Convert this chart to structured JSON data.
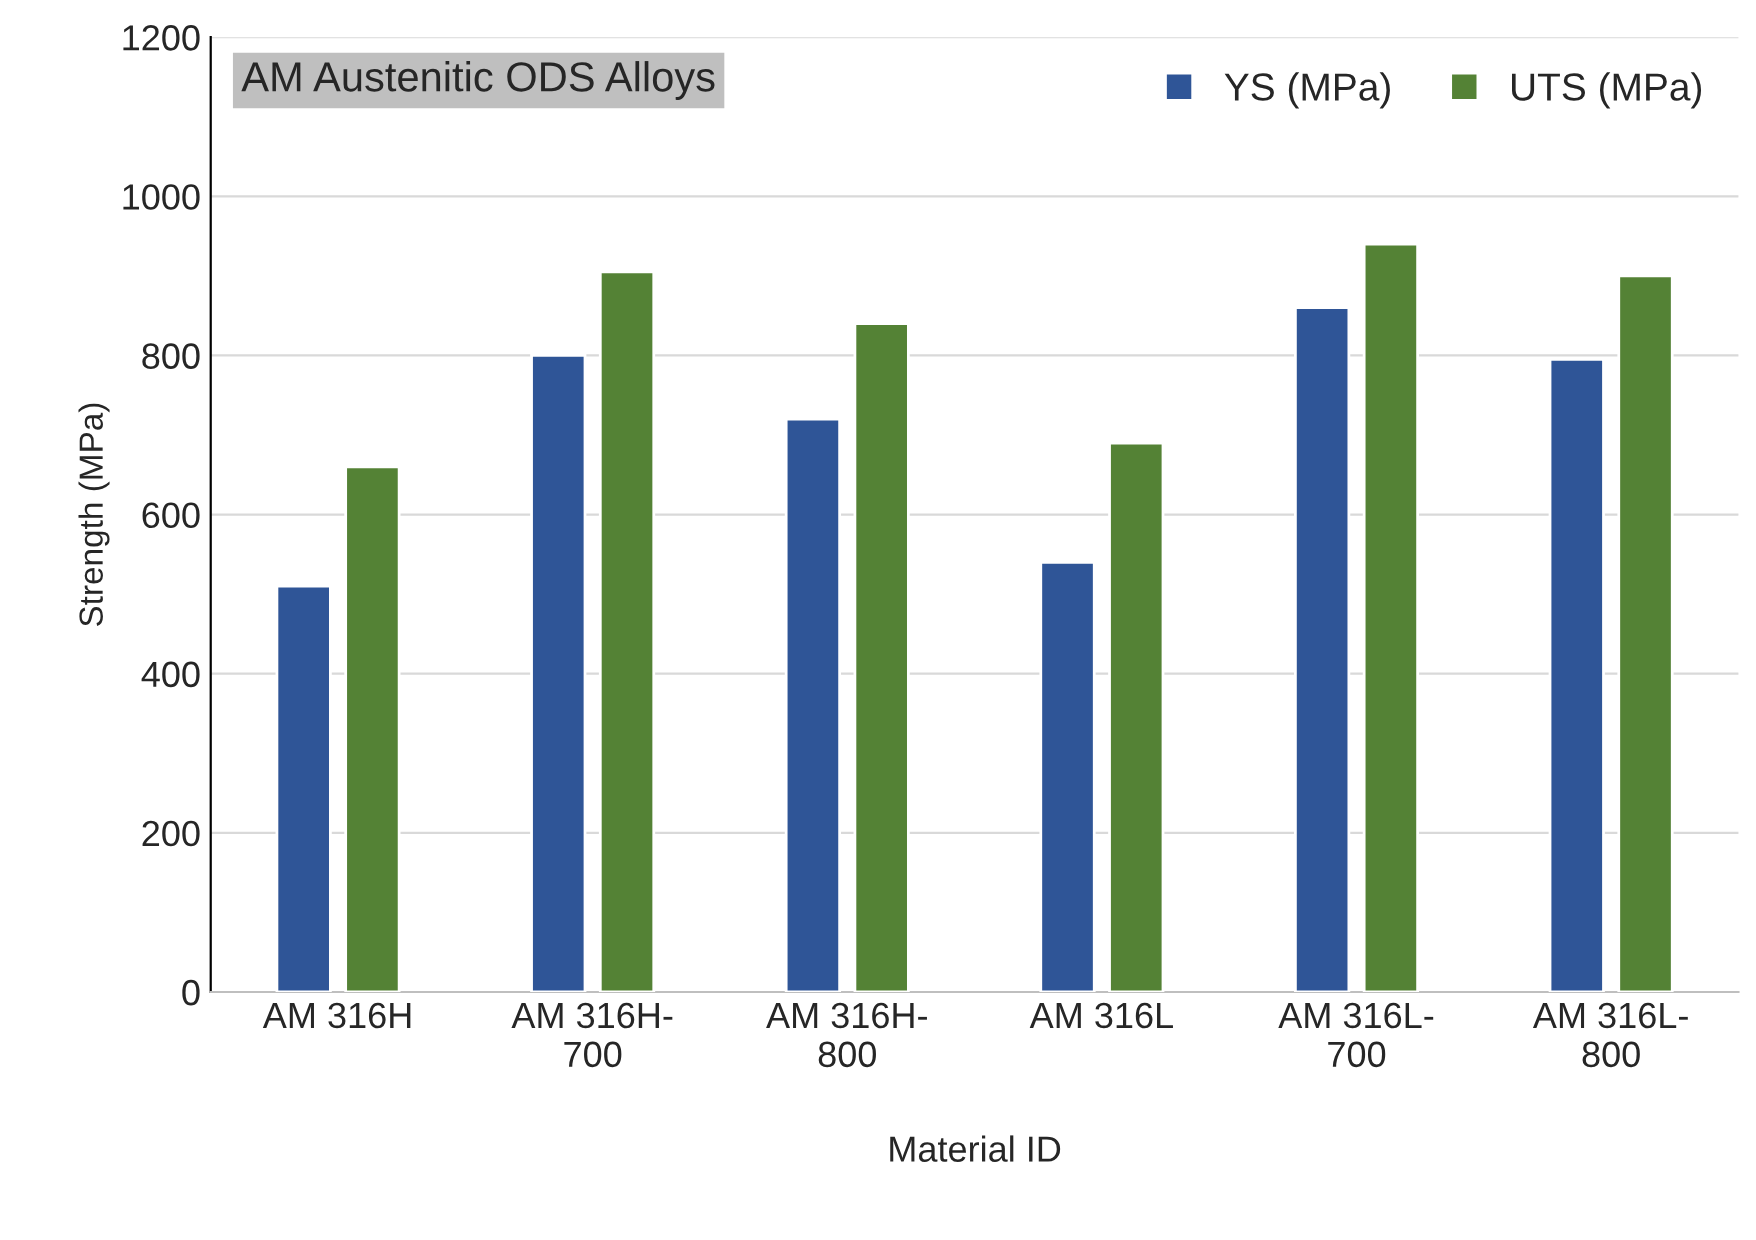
{
  "chart_data": {
    "type": "bar",
    "title": "AM Austenitic ODS Alloys",
    "xlabel": "Material ID",
    "ylabel": "Strength (MPa)",
    "categories": [
      "AM 316H",
      "AM 316H-\n700",
      "AM 316H-\n800",
      "AM 316L",
      "AM 316L-\n700",
      "AM 316L-\n800"
    ],
    "series": [
      {
        "name": "YS (MPa)",
        "color": "#2f5597",
        "values": [
          510,
          800,
          720,
          540,
          860,
          795
        ]
      },
      {
        "name": "UTS (MPa)",
        "color": "#548235",
        "values": [
          660,
          905,
          840,
          690,
          940,
          900
        ]
      }
    ],
    "ylim": [
      0,
      1200
    ],
    "yticks": [
      0,
      200,
      400,
      600,
      800,
      1000,
      1200
    ],
    "grid": "y",
    "legend": "top right"
  }
}
